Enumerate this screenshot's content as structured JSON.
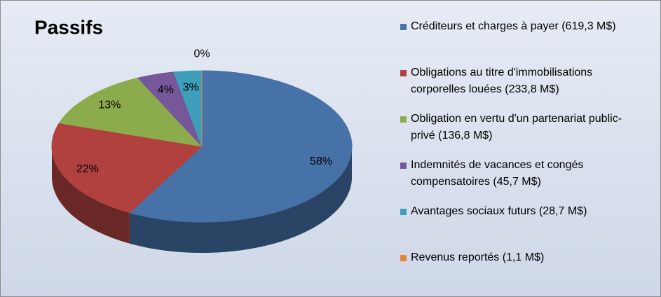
{
  "chart_data": {
    "type": "pie",
    "title": "Passifs",
    "categories": [
      "Créditeurs et charges à payer (619,3 M$)",
      "Obligations au titre d'immobilisations corporelles louées (233,8 M$)",
      "Obligation en vertu d'un partenariat public-privé (136,8 M$)",
      "Indemnités de vacances et congés compensatoires (45,7 M$)",
      "Avantages sociaux futurs (28,7 M$)",
      "Revenus reportés (1,1 M$)"
    ],
    "values": [
      58,
      22,
      13,
      4,
      3,
      0
    ],
    "value_labels": [
      "58%",
      "22%",
      "13%",
      "4%",
      "3%",
      "0%"
    ],
    "colors": [
      "#4672a8",
      "#b0413e",
      "#8cab4c",
      "#76589a",
      "#3d9fb9",
      "#e8853b"
    ]
  }
}
